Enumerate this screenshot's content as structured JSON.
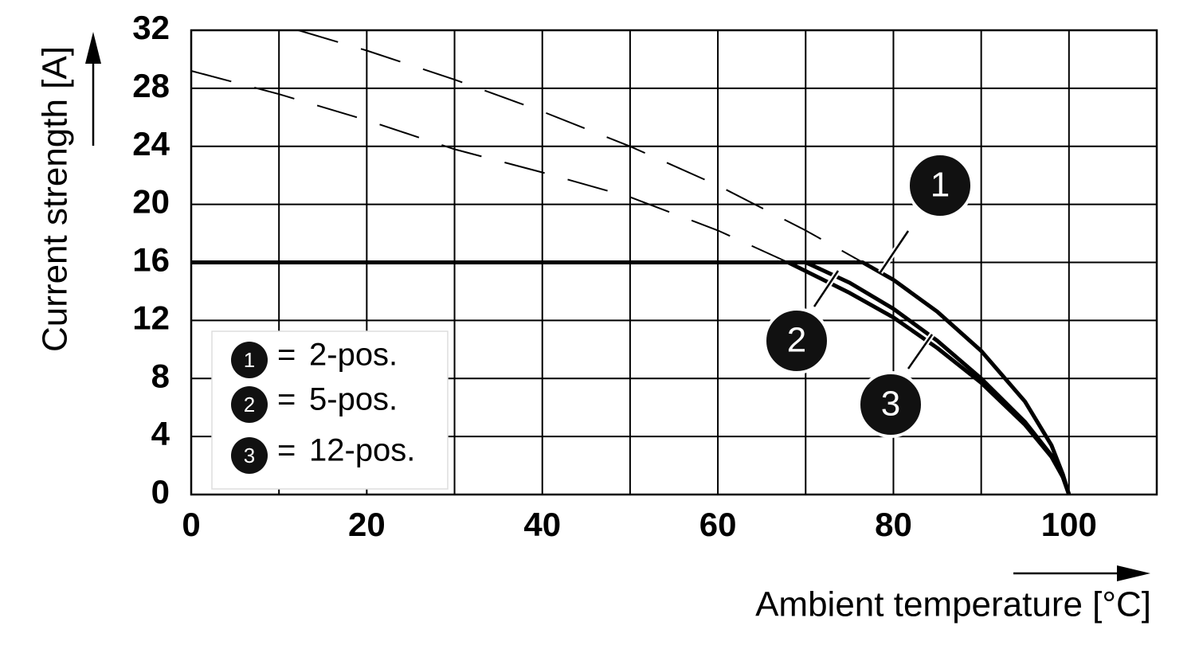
{
  "chart_data": {
    "type": "line",
    "x_label": "Ambient temperature [°C]",
    "y_label": "Current strength [A]",
    "xlim": [
      0,
      110
    ],
    "xticks": [
      0,
      20,
      40,
      60,
      80,
      100
    ],
    "xminorticks": [
      10,
      30,
      50,
      70,
      90,
      110
    ],
    "ylim": [
      0,
      32
    ],
    "yticks": [
      0,
      4,
      8,
      12,
      16,
      20,
      24,
      28,
      32
    ],
    "grid": true,
    "legend_separator": "=",
    "series": [
      {
        "name": "2-pos.",
        "marker": "1",
        "color": "#000000",
        "x": [
          0,
          76.5,
          80,
          85,
          90,
          95,
          98,
          99.3,
          100
        ],
        "values": [
          16,
          16,
          14.8,
          12.6,
          9.9,
          6.4,
          3.4,
          1.4,
          0
        ]
      },
      {
        "name": "5-pos.",
        "marker": "2",
        "color": "#000000",
        "x": [
          0,
          68,
          70,
          75,
          80,
          85,
          90,
          95,
          98,
          99.3,
          100
        ],
        "values": [
          16,
          16,
          15.4,
          13.9,
          12.2,
          10.1,
          7.7,
          4.8,
          2.6,
          1.2,
          0
        ]
      },
      {
        "name": "12-pos.",
        "marker": "3",
        "color": "#000000",
        "x": [
          0,
          70,
          75,
          80,
          85,
          90,
          95,
          98,
          99.3,
          100
        ],
        "values": [
          16,
          16,
          14.6,
          12.8,
          10.6,
          8.0,
          5.0,
          2.7,
          1.2,
          0
        ]
      }
    ],
    "extrapolations": [
      {
        "x": [
          12.2,
          20,
          30,
          40,
          50,
          60,
          70,
          76.5
        ],
        "values": [
          32,
          30.6,
          28.6,
          26.4,
          24,
          21.3,
          18.2,
          16
        ]
      },
      {
        "x": [
          0,
          10,
          20,
          30,
          40,
          50,
          60,
          68
        ],
        "values": [
          29.2,
          27.6,
          25.8,
          23.8,
          22.2,
          20.5,
          18.2,
          16
        ]
      }
    ]
  }
}
